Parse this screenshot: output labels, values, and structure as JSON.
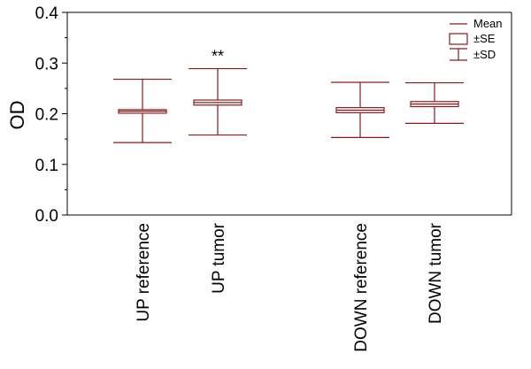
{
  "chart_data": {
    "type": "box",
    "ylabel": "OD",
    "ylim": [
      0.0,
      0.4
    ],
    "yticks": [
      "0.0",
      "0.1",
      "0.2",
      "0.3",
      "0.4"
    ],
    "color": "#8b1a1a",
    "groups": [
      {
        "label": "UP reference",
        "mean": 0.205,
        "se_low": 0.201,
        "se_high": 0.208,
        "sd_low": 0.143,
        "sd_high": 0.268,
        "annotation": ""
      },
      {
        "label": "UP tumor",
        "mean": 0.222,
        "se_low": 0.217,
        "se_high": 0.227,
        "sd_low": 0.158,
        "sd_high": 0.289,
        "annotation": "**"
      },
      {
        "label": "DOWN reference",
        "mean": 0.207,
        "se_low": 0.202,
        "se_high": 0.212,
        "sd_low": 0.153,
        "sd_high": 0.262,
        "annotation": ""
      },
      {
        "label": "DOWN tumor",
        "mean": 0.219,
        "se_low": 0.214,
        "se_high": 0.224,
        "sd_low": 0.181,
        "sd_high": 0.261,
        "annotation": ""
      }
    ],
    "legend": {
      "position": "top-right",
      "mean_label": "Mean",
      "se_label": "±SE",
      "sd_label": "±SD"
    }
  }
}
